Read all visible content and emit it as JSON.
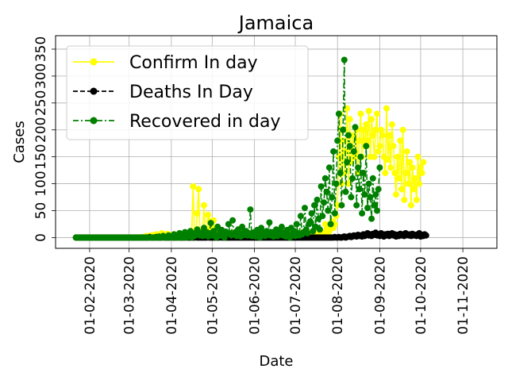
{
  "chart_data": {
    "type": "line",
    "title": "Jamaica",
    "xlabel": "Date",
    "ylabel": "Cases",
    "xlim": [
      "2020-01-07",
      "2020-11-26"
    ],
    "ylim": [
      -20,
      375
    ],
    "grid": true,
    "legend_position": "upper left",
    "x_ticks": [
      {
        "date": "2020-02-01",
        "label": "01-02-2020"
      },
      {
        "date": "2020-03-01",
        "label": "01-03-2020"
      },
      {
        "date": "2020-04-01",
        "label": "01-04-2020"
      },
      {
        "date": "2020-05-01",
        "label": "01-05-2020"
      },
      {
        "date": "2020-06-01",
        "label": "01-06-2020"
      },
      {
        "date": "2020-07-01",
        "label": "01-07-2020"
      },
      {
        "date": "2020-08-01",
        "label": "01-08-2020"
      },
      {
        "date": "2020-09-01",
        "label": "01-09-2020"
      },
      {
        "date": "2020-10-01",
        "label": "01-10-2020"
      },
      {
        "date": "2020-11-01",
        "label": "01-11-2020"
      }
    ],
    "y_ticks": [
      {
        "value": 0,
        "label": "0"
      },
      {
        "value": 50,
        "label": "50"
      },
      {
        "value": 100,
        "label": "100"
      },
      {
        "value": 150,
        "label": "150"
      },
      {
        "value": 200,
        "label": "200"
      },
      {
        "value": 250,
        "label": "250"
      },
      {
        "value": 300,
        "label": "300"
      },
      {
        "value": 350,
        "label": "350"
      }
    ],
    "series": [
      {
        "name": "Confirm In day",
        "color": "#ffff00",
        "linestyle": "solid",
        "start_date": "2020-01-22",
        "values": [
          0,
          0,
          0,
          0,
          0,
          0,
          0,
          0,
          0,
          0,
          0,
          0,
          0,
          0,
          0,
          0,
          0,
          0,
          0,
          0,
          0,
          0,
          0,
          0,
          0,
          0,
          0,
          0,
          0,
          0,
          0,
          0,
          0,
          0,
          0,
          0,
          0,
          0,
          0,
          0,
          0,
          0,
          0,
          0,
          0,
          0,
          0,
          0,
          0,
          1,
          1,
          0,
          3,
          1,
          2,
          4,
          3,
          0,
          5,
          6,
          2,
          4,
          3,
          8,
          4,
          5,
          2,
          7,
          0,
          5,
          3,
          4,
          6,
          5,
          2,
          3,
          8,
          4,
          6,
          3,
          2,
          9,
          5,
          4,
          7,
          12,
          95,
          8,
          5,
          45,
          90,
          12,
          7,
          3,
          60,
          6,
          12,
          42,
          30,
          18,
          5,
          32,
          15,
          8,
          6,
          8,
          4,
          12,
          6,
          9,
          7,
          5,
          3,
          8,
          4,
          6,
          9,
          2,
          7,
          5,
          4,
          10,
          6,
          3,
          5,
          8,
          2,
          4,
          7,
          6,
          9,
          3,
          5,
          2,
          6,
          10,
          4,
          7,
          3,
          5,
          8,
          4,
          2,
          6,
          9,
          3,
          5,
          7,
          4,
          8,
          2,
          6,
          3,
          5,
          9,
          7,
          4,
          6,
          3,
          8,
          5,
          2,
          7,
          4,
          6,
          9,
          3,
          5,
          8,
          4,
          7,
          2,
          6,
          10,
          5,
          3,
          8,
          4,
          6,
          12,
          7,
          5,
          9,
          25,
          15,
          8,
          12,
          20,
          30,
          18,
          25,
          40,
          60,
          150,
          230,
          100,
          180,
          120,
          160,
          240,
          100,
          220,
          140,
          190,
          150,
          160,
          200,
          120,
          180,
          230,
          150,
          200,
          170,
          210,
          180,
          235,
          150,
          220,
          190,
          150,
          200,
          230,
          160,
          170,
          200,
          190,
          150,
          120,
          240,
          145,
          190,
          130,
          210,
          170,
          120,
          80,
          150,
          110,
          180,
          90,
          200,
          70,
          120,
          160,
          100,
          140,
          60,
          130,
          90,
          110,
          70,
          150,
          100,
          130,
          120,
          140
        ]
      },
      {
        "name": "Deaths In Day",
        "color": "#000000",
        "linestyle": "dashed",
        "start_date": "2020-01-22",
        "values": [
          0,
          0,
          0,
          0,
          0,
          0,
          0,
          0,
          0,
          0,
          0,
          0,
          0,
          0,
          0,
          0,
          0,
          0,
          0,
          0,
          0,
          0,
          0,
          0,
          0,
          0,
          0,
          0,
          0,
          0,
          0,
          0,
          0,
          0,
          0,
          0,
          0,
          0,
          0,
          0,
          0,
          0,
          0,
          0,
          0,
          0,
          0,
          0,
          0,
          0,
          0,
          0,
          0,
          0,
          1,
          0,
          0,
          0,
          0,
          1,
          0,
          0,
          0,
          0,
          1,
          0,
          0,
          0,
          0,
          0,
          1,
          0,
          0,
          0,
          0,
          1,
          0,
          0,
          0,
          0,
          0,
          1,
          0,
          0,
          0,
          0,
          0,
          0,
          1,
          0,
          0,
          0,
          0,
          0,
          0,
          0,
          0,
          1,
          0,
          0,
          0,
          0,
          0,
          0,
          0,
          0,
          1,
          0,
          0,
          0,
          0,
          0,
          0,
          0,
          0,
          0,
          0,
          0,
          0,
          0,
          0,
          0,
          0,
          0,
          0,
          0,
          0,
          0,
          0,
          0,
          0,
          0,
          0,
          0,
          0,
          0,
          0,
          0,
          0,
          0,
          0,
          0,
          0,
          0,
          0,
          0,
          0,
          0,
          0,
          0,
          0,
          0,
          0,
          0,
          0,
          0,
          0,
          0,
          0,
          0,
          0,
          0,
          0,
          0,
          0,
          0,
          0,
          0,
          0,
          0,
          0,
          0,
          0,
          0,
          0,
          0,
          0,
          0,
          0,
          0,
          0,
          0,
          0,
          0,
          0,
          0,
          0,
          0,
          0,
          0,
          1,
          0,
          0,
          1,
          0,
          0,
          1,
          2,
          0,
          1,
          2,
          3,
          1,
          2,
          4,
          3,
          2,
          5,
          3,
          4,
          2,
          6,
          3,
          5,
          8,
          4,
          6,
          3,
          7,
          5,
          9,
          4,
          6,
          3,
          8,
          5,
          2,
          6,
          4,
          7,
          3,
          5,
          8,
          4,
          6,
          2,
          5,
          3,
          7,
          4,
          6,
          3,
          8,
          5,
          4,
          6,
          3,
          7,
          4,
          5,
          3,
          6,
          8,
          2,
          5,
          3,
          6,
          4
        ]
      },
      {
        "name": "Recovered in day",
        "color": "#008000",
        "linestyle": "dashdot",
        "start_date": "2020-01-22",
        "values": [
          0,
          0,
          0,
          0,
          0,
          0,
          0,
          0,
          0,
          0,
          0,
          0,
          0,
          0,
          0,
          0,
          0,
          0,
          0,
          0,
          0,
          0,
          0,
          0,
          0,
          0,
          0,
          0,
          0,
          0,
          0,
          0,
          0,
          0,
          0,
          0,
          0,
          0,
          0,
          0,
          0,
          0,
          0,
          0,
          0,
          0,
          0,
          0,
          0,
          0,
          0,
          0,
          0,
          0,
          0,
          0,
          0,
          0,
          0,
          0,
          0,
          2,
          0,
          0,
          3,
          1,
          0,
          0,
          4,
          0,
          2,
          0,
          6,
          0,
          3,
          0,
          8,
          0,
          4,
          0,
          10,
          0,
          5,
          2,
          12,
          0,
          8,
          3,
          7,
          15,
          6,
          4,
          9,
          3,
          18,
          5,
          10,
          2,
          8,
          27,
          4,
          12,
          6,
          0,
          20,
          3,
          9,
          14,
          5,
          0,
          11,
          7,
          25,
          8,
          4,
          32,
          6,
          10,
          3,
          15,
          7,
          2,
          20,
          9,
          5,
          12,
          4,
          8,
          52,
          3,
          6,
          10,
          2,
          14,
          7,
          0,
          18,
          5,
          9,
          3,
          12,
          6,
          28,
          4,
          10,
          2,
          8,
          15,
          3,
          6,
          11,
          20,
          4,
          9,
          2,
          14,
          5,
          0,
          18,
          7,
          12,
          3,
          25,
          8,
          4,
          40,
          6,
          10,
          55,
          15,
          8,
          25,
          30,
          45,
          12,
          60,
          20,
          70,
          35,
          15,
          95,
          40,
          65,
          110,
          85,
          50,
          130,
          25,
          75,
          160,
          45,
          100,
          180,
          230,
          120,
          60,
          200,
          330,
          85,
          140,
          190,
          170,
          75,
          110,
          160,
          205,
          60,
          130,
          90,
          150,
          45,
          120,
          80,
          170,
          55,
          100,
          75,
          35,
          110,
          60,
          80,
          50,
          90,
          130
        ]
      }
    ]
  }
}
